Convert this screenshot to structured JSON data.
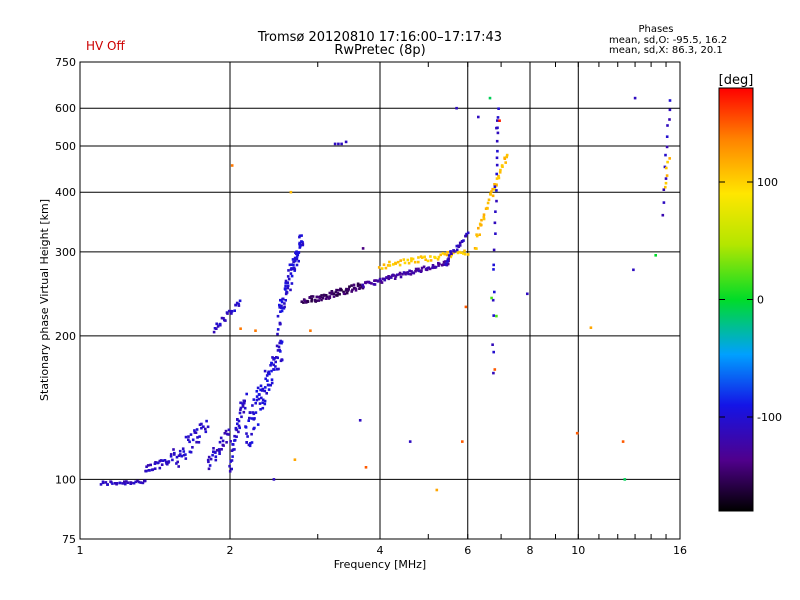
{
  "header": {
    "title_line1": "Tromsø 20120810 17:16:00–17:17:43",
    "title_line2": "RwPretec (8p)",
    "status": "HV Off",
    "status_color": "#cc0000",
    "stats_title": "Phases",
    "stats_o": "mean, sd,O: -95.5, 16.2",
    "stats_x": "mean, sd,X:  86.3, 20.1"
  },
  "colorbar": {
    "label": "[deg]",
    "min": -180,
    "max": 180,
    "ticks": [
      {
        "value": 100,
        "label": "100"
      },
      {
        "value": 0,
        "label": "0"
      },
      {
        "value": -100,
        "label": "-100"
      }
    ]
  },
  "chart_data": {
    "type": "scatter",
    "xlabel": "Frequency [MHz]",
    "ylabel": "Stationary phase Virtual Height [km]",
    "xscale": "log",
    "yscale": "log",
    "xlim": [
      1,
      16
    ],
    "ylim": [
      75,
      750
    ],
    "xticks": [
      {
        "value": 1,
        "label": "1",
        "grid": false
      },
      {
        "value": 2,
        "label": "2",
        "grid": true
      },
      {
        "value": 4,
        "label": "4",
        "grid": true
      },
      {
        "value": 6,
        "label": "6",
        "grid": true
      },
      {
        "value": 8,
        "label": "8",
        "grid": true
      },
      {
        "value": 10,
        "label": "10",
        "grid": true
      },
      {
        "value": 16,
        "label": "16",
        "grid": false
      }
    ],
    "yticks": [
      {
        "value": 75,
        "label": "75",
        "grid": false
      },
      {
        "value": 100,
        "label": "100",
        "grid": true
      },
      {
        "value": 200,
        "label": "200",
        "grid": true
      },
      {
        "value": 300,
        "label": "300",
        "grid": true
      },
      {
        "value": 400,
        "label": "400",
        "grid": true
      },
      {
        "value": 500,
        "label": "500",
        "grid": true
      },
      {
        "value": 600,
        "label": "600",
        "grid": true
      },
      {
        "value": 750,
        "label": "750",
        "grid": false
      }
    ],
    "point_groups": [
      {
        "name": "o-trace-low",
        "f": [
          1.1,
          1.35
        ],
        "h": [
          98,
          99
        ],
        "phase": -110,
        "n": 30,
        "jitter": 1.0
      },
      {
        "name": "o-trace-rise",
        "f": [
          1.35,
          1.55
        ],
        "h": [
          103,
          113
        ],
        "phase": -110,
        "n": 30,
        "jitter": 3
      },
      {
        "name": "o-trace-cusp1",
        "f": [
          1.55,
          1.8
        ],
        "h": [
          110,
          130
        ],
        "phase": -105,
        "n": 40,
        "jitter": 6
      },
      {
        "name": "o-trace-cusp2",
        "f": [
          1.8,
          2.0
        ],
        "h": [
          108,
          125
        ],
        "phase": -110,
        "n": 30,
        "jitter": 5
      },
      {
        "name": "o-trace-2mhz",
        "f": [
          2.0,
          2.15
        ],
        "h": [
          108,
          150
        ],
        "phase": -105,
        "n": 40,
        "jitter": 6
      },
      {
        "name": "o-trace-peak",
        "f": [
          2.15,
          2.55
        ],
        "h": [
          120,
          190
        ],
        "phase": -100,
        "n": 90,
        "jitter": 12
      },
      {
        "name": "o-trace-fblob",
        "f": [
          2.5,
          2.8
        ],
        "h": [
          215,
          320
        ],
        "phase": -100,
        "n": 80,
        "jitter": 15
      },
      {
        "name": "o-trace-cluster",
        "f": [
          1.85,
          2.1
        ],
        "h": [
          205,
          235
        ],
        "phase": -105,
        "n": 25,
        "jitter": 4
      },
      {
        "name": "o-trace-f1",
        "f": [
          2.8,
          3.7
        ],
        "h": [
          235,
          255
        ],
        "phase": -150,
        "n": 80,
        "jitter": 4
      },
      {
        "name": "o-trace-f2",
        "f": [
          3.7,
          5.5
        ],
        "h": [
          255,
          285
        ],
        "phase": -125,
        "n": 80,
        "jitter": 3
      },
      {
        "name": "x-trace-f",
        "f": [
          4.0,
          6.0
        ],
        "h": [
          280,
          300
        ],
        "phase": 105,
        "n": 50,
        "jitter": 4
      },
      {
        "name": "o-trace-cusp-end",
        "f": [
          5.4,
          6.0
        ],
        "h": [
          285,
          325
        ],
        "phase": -110,
        "n": 25,
        "jitter": 4
      },
      {
        "name": "x-trace-cusp",
        "f": [
          6.2,
          7.2
        ],
        "h": [
          310,
          480
        ],
        "phase": 110,
        "n": 40,
        "jitter": 10
      },
      {
        "name": "scatter-6p8",
        "f": [
          6.75,
          6.9
        ],
        "h": [
          160,
          600
        ],
        "phase": -105,
        "n": 25,
        "jitter": 8
      },
      {
        "name": "scatter-15",
        "f": [
          14.8,
          15.3
        ],
        "h": [
          360,
          620
        ],
        "phase": -110,
        "n": 12,
        "jitter": 5
      },
      {
        "name": "scatter-15x",
        "f": [
          14.9,
          15.2
        ],
        "h": [
          410,
          470
        ],
        "phase": 110,
        "n": 6,
        "jitter": 5
      }
    ],
    "isolated_points": [
      {
        "f": 3.25,
        "h": 505,
        "phase": -110
      },
      {
        "f": 3.3,
        "h": 505,
        "phase": -110
      },
      {
        "f": 3.35,
        "h": 505,
        "phase": -110
      },
      {
        "f": 3.42,
        "h": 510,
        "phase": -110
      },
      {
        "f": 2.02,
        "h": 455,
        "phase": 140
      },
      {
        "f": 2.65,
        "h": 400,
        "phase": 110
      },
      {
        "f": 3.7,
        "h": 305,
        "phase": -140
      },
      {
        "f": 3.65,
        "h": 133,
        "phase": -110
      },
      {
        "f": 3.75,
        "h": 106,
        "phase": 150
      },
      {
        "f": 4.6,
        "h": 120,
        "phase": -110
      },
      {
        "f": 5.2,
        "h": 95,
        "phase": 120
      },
      {
        "f": 5.85,
        "h": 120,
        "phase": 150
      },
      {
        "f": 6.3,
        "h": 575,
        "phase": -110
      },
      {
        "f": 5.7,
        "h": 600,
        "phase": -110
      },
      {
        "f": 6.65,
        "h": 630,
        "phase": -10
      },
      {
        "f": 6.95,
        "h": 565,
        "phase": 170
      },
      {
        "f": 6.85,
        "h": 545,
        "phase": -110
      },
      {
        "f": 5.95,
        "h": 230,
        "phase": 150
      },
      {
        "f": 6.7,
        "h": 240,
        "phase": 20
      },
      {
        "f": 6.85,
        "h": 220,
        "phase": 20
      },
      {
        "f": 6.8,
        "h": 170,
        "phase": 150
      },
      {
        "f": 7.9,
        "h": 245,
        "phase": -110
      },
      {
        "f": 9.95,
        "h": 125,
        "phase": 150
      },
      {
        "f": 10.6,
        "h": 208,
        "phase": 120
      },
      {
        "f": 12.3,
        "h": 120,
        "phase": 150
      },
      {
        "f": 12.4,
        "h": 100,
        "phase": -10
      },
      {
        "f": 12.9,
        "h": 275,
        "phase": -110
      },
      {
        "f": 13.0,
        "h": 630,
        "phase": -110
      },
      {
        "f": 14.3,
        "h": 295,
        "phase": 0
      },
      {
        "f": 2.45,
        "h": 100,
        "phase": -110
      },
      {
        "f": 2.7,
        "h": 110,
        "phase": 120
      },
      {
        "f": 2.9,
        "h": 205,
        "phase": 140
      },
      {
        "f": 2.25,
        "h": 205,
        "phase": 140
      },
      {
        "f": 2.1,
        "h": 207,
        "phase": 140
      }
    ]
  }
}
